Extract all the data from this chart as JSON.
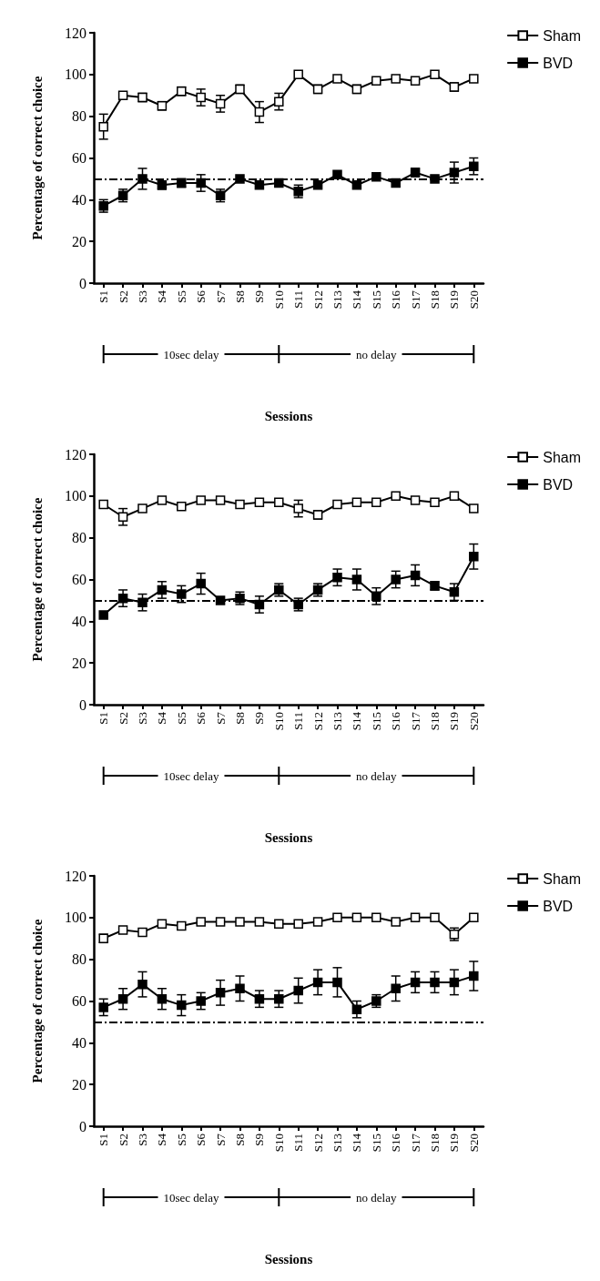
{
  "chart_data": [
    {
      "type": "line",
      "ylabel": "Percentage of correct choice",
      "xlabel": "Sessions",
      "categories": [
        "S1",
        "S2",
        "S3",
        "S4",
        "S5",
        "S6",
        "S7",
        "S8",
        "S9",
        "S10",
        "S11",
        "S12",
        "S13",
        "S14",
        "S15",
        "S16",
        "S17",
        "S18",
        "S19",
        "S20"
      ],
      "ylim": [
        0,
        120
      ],
      "yticks": [
        0,
        20,
        40,
        60,
        80,
        100,
        120
      ],
      "grid": false,
      "legend": "top right",
      "marker": "square",
      "line_style": "solid",
      "series": [
        {
          "name": "Sham",
          "color": "#ffffff",
          "values": [
            75,
            90,
            89,
            85,
            92,
            89,
            86,
            93,
            82,
            87,
            100,
            93,
            98,
            93,
            97,
            98,
            97,
            100,
            94,
            98
          ],
          "errors": [
            6,
            null,
            2,
            2,
            2,
            4,
            4,
            2,
            5,
            4,
            null,
            2,
            null,
            2,
            null,
            null,
            null,
            null,
            2,
            null
          ]
        },
        {
          "name": "BVD",
          "color": "#000000",
          "values": [
            37,
            42,
            50,
            47,
            48,
            48,
            42,
            50,
            47,
            48,
            44,
            47,
            52,
            47,
            51,
            48,
            53,
            50,
            53,
            56
          ],
          "errors": [
            3,
            3,
            5,
            2,
            2,
            4,
            3,
            null,
            null,
            null,
            3,
            null,
            null,
            null,
            null,
            null,
            2,
            null,
            5,
            4
          ]
        }
      ],
      "ref_lines": [
        {
          "axis": "y",
          "value": 50,
          "color": "#000000",
          "line_style": "dashed"
        }
      ],
      "annotations": [
        "10sec delay",
        "no delay"
      ]
    },
    {
      "type": "line",
      "ylabel": "Percentage of correct choice",
      "xlabel": "Sessions",
      "categories": [
        "S1",
        "S2",
        "S3",
        "S4",
        "S5",
        "S6",
        "S7",
        "S8",
        "S9",
        "S10",
        "S11",
        "S12",
        "S13",
        "S14",
        "S15",
        "S16",
        "S17",
        "S18",
        "S19",
        "S20"
      ],
      "ylim": [
        0,
        120
      ],
      "yticks": [
        0,
        20,
        40,
        60,
        80,
        100,
        120
      ],
      "grid": false,
      "legend": "top right",
      "marker": "square",
      "line_style": "solid",
      "series": [
        {
          "name": "Sham",
          "color": "#ffffff",
          "values": [
            96,
            90,
            94,
            98,
            95,
            98,
            98,
            96,
            97,
            97,
            94,
            91,
            96,
            97,
            97,
            100,
            98,
            97,
            100,
            94
          ],
          "errors": [
            null,
            4,
            null,
            null,
            null,
            null,
            null,
            null,
            null,
            null,
            4,
            2,
            null,
            null,
            null,
            null,
            null,
            null,
            null,
            null
          ]
        },
        {
          "name": "BVD",
          "color": "#000000",
          "values": [
            43,
            51,
            49,
            55,
            53,
            58,
            50,
            51,
            48,
            55,
            48,
            55,
            61,
            60,
            52,
            60,
            62,
            57,
            54,
            71
          ],
          "errors": [
            null,
            4,
            4,
            4,
            4,
            5,
            null,
            3,
            4,
            3,
            3,
            3,
            4,
            5,
            4,
            4,
            5,
            2,
            4,
            6
          ]
        }
      ],
      "ref_lines": [
        {
          "axis": "y",
          "value": 50,
          "color": "#000000",
          "line_style": "dashed"
        }
      ],
      "annotations": [
        "10sec delay",
        "no delay"
      ]
    },
    {
      "type": "line",
      "ylabel": "Percentage of correct choice",
      "xlabel": "Sessions",
      "categories": [
        "S1",
        "S2",
        "S3",
        "S4",
        "S5",
        "S6",
        "S7",
        "S8",
        "S9",
        "S10",
        "S11",
        "S12",
        "S13",
        "S14",
        "S15",
        "S16",
        "S17",
        "S18",
        "S19",
        "S20"
      ],
      "ylim": [
        0,
        120
      ],
      "yticks": [
        0,
        20,
        40,
        60,
        80,
        100,
        120
      ],
      "grid": false,
      "legend": "top right",
      "marker": "square",
      "line_style": "solid",
      "series": [
        {
          "name": "Sham",
          "color": "#ffffff",
          "values": [
            90,
            94,
            93,
            97,
            96,
            98,
            98,
            98,
            98,
            97,
            97,
            98,
            100,
            100,
            100,
            98,
            100,
            100,
            92,
            100
          ],
          "errors": [
            2,
            null,
            null,
            null,
            null,
            null,
            null,
            null,
            null,
            null,
            null,
            null,
            null,
            null,
            null,
            null,
            null,
            null,
            3,
            null
          ]
        },
        {
          "name": "BVD",
          "color": "#000000",
          "values": [
            57,
            61,
            68,
            61,
            58,
            60,
            64,
            66,
            61,
            61,
            65,
            69,
            69,
            56,
            60,
            66,
            69,
            69,
            69,
            72
          ],
          "errors": [
            4,
            5,
            6,
            5,
            5,
            4,
            6,
            6,
            4,
            4,
            6,
            6,
            7,
            4,
            3,
            6,
            5,
            5,
            6,
            7
          ]
        }
      ],
      "ref_lines": [
        {
          "axis": "y",
          "value": 50,
          "color": "#000000",
          "line_style": "dashed"
        }
      ],
      "annotations": [
        "10sec delay",
        "no delay"
      ]
    }
  ]
}
